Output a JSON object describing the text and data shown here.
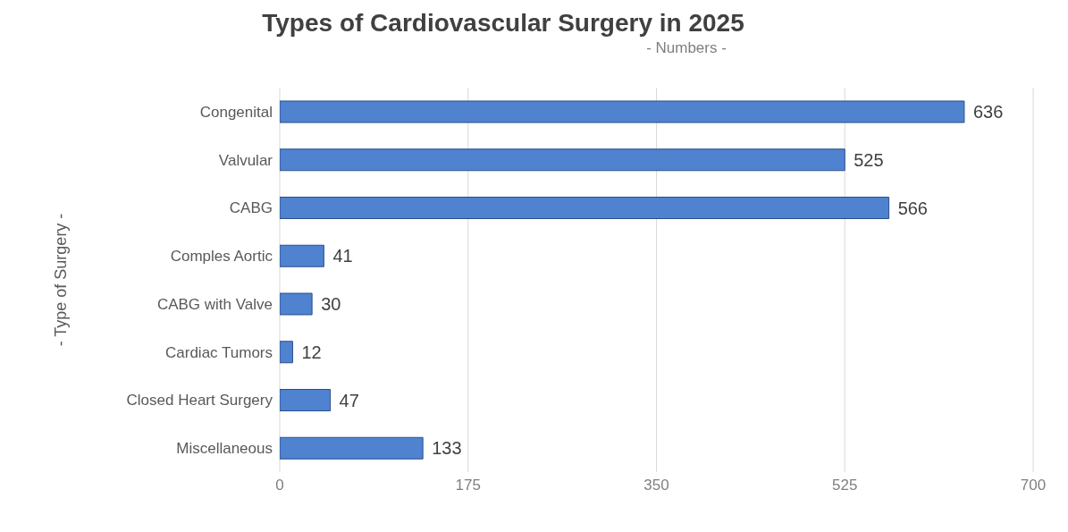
{
  "chart_data": {
    "type": "bar",
    "orientation": "horizontal",
    "title": "Types of Cardiovascular Surgery in 2025",
    "xlabel": "- Numbers -",
    "ylabel": "- Type of Surgery -",
    "categories": [
      "Congenital",
      "Valvular",
      "CABG",
      "Comples Aortic",
      "CABG with Valve",
      "Cardiac Tumors",
      "Closed Heart Surgery",
      "Miscellaneous"
    ],
    "values": [
      636,
      525,
      566,
      41,
      30,
      12,
      47,
      133
    ],
    "color": "#4f82cf",
    "xlim": [
      0,
      700
    ],
    "xticks": [
      0,
      175,
      350,
      525,
      700
    ],
    "grid": "x",
    "data_labels": true
  }
}
